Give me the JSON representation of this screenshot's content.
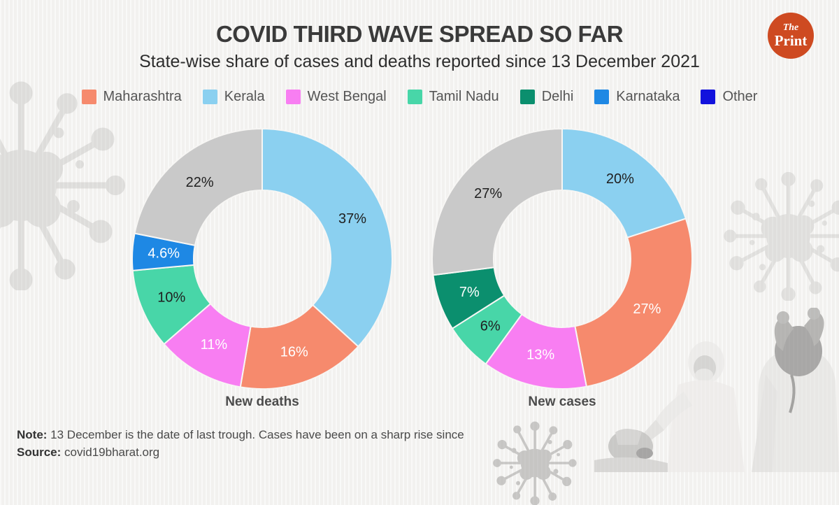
{
  "header": {
    "title": "COVID THIRD WAVE SPREAD SO FAR",
    "subtitle": "State-wise share of cases and deaths reported since 13 December 2021"
  },
  "logo": {
    "line1": "The",
    "line2": "Print",
    "bg_color": "#ce4a21",
    "text_color": "#ffffff"
  },
  "legend": {
    "items": [
      {
        "label": "Maharashtra",
        "color": "#f68a6d"
      },
      {
        "label": "Kerala",
        "color": "#8bd0f0"
      },
      {
        "label": "West Bengal",
        "color": "#f87ef2"
      },
      {
        "label": "Tamil Nadu",
        "color": "#48d6a8"
      },
      {
        "label": "Delhi",
        "color": "#0b8f6e"
      },
      {
        "label": "Karnataka",
        "color": "#1e88e4"
      },
      {
        "label": "Other",
        "color": "#1212dd"
      }
    ]
  },
  "chart_data": [
    {
      "type": "pie",
      "donut": true,
      "title": "New deaths",
      "legend_position": "top",
      "start_angle_deg": 0,
      "direction": "clockwise",
      "segments": [
        {
          "name": "Kerala",
          "value": 37,
          "display": "37%",
          "color": "#8bd0f0",
          "label_color": "#1f1f1f"
        },
        {
          "name": "Maharashtra",
          "value": 16,
          "display": "16%",
          "color": "#f68a6d",
          "label_color": "#ffffff"
        },
        {
          "name": "West Bengal",
          "value": 11,
          "display": "11%",
          "color": "#f87ef2",
          "label_color": "#ffffff"
        },
        {
          "name": "Tamil Nadu",
          "value": 10,
          "display": "10%",
          "color": "#48d6a8",
          "label_color": "#1f1f1f"
        },
        {
          "name": "Karnataka",
          "value": 4.6,
          "display": "4.6%",
          "color": "#1e88e4",
          "label_color": "#ffffff"
        },
        {
          "name": "Other",
          "value": 22,
          "display": "22%",
          "color": "#c9c9c9",
          "label_color": "#1f1f1f"
        }
      ]
    },
    {
      "type": "pie",
      "donut": true,
      "title": "New cases",
      "legend_position": "top",
      "start_angle_deg": 0,
      "direction": "clockwise",
      "segments": [
        {
          "name": "Kerala",
          "value": 20,
          "display": "20%",
          "color": "#8bd0f0",
          "label_color": "#1f1f1f"
        },
        {
          "name": "Maharashtra",
          "value": 27,
          "display": "27%",
          "color": "#f68a6d",
          "label_color": "#ffffff"
        },
        {
          "name": "West Bengal",
          "value": 13,
          "display": "13%",
          "color": "#f87ef2",
          "label_color": "#ffffff"
        },
        {
          "name": "Tamil Nadu",
          "value": 6,
          "display": "6%",
          "color": "#48d6a8",
          "label_color": "#1f1f1f"
        },
        {
          "name": "Delhi",
          "value": 7,
          "display": "7%",
          "color": "#0b8f6e",
          "label_color": "#ffffff"
        },
        {
          "name": "Other",
          "value": 27,
          "display": "27%",
          "color": "#c9c9c9",
          "label_color": "#1f1f1f"
        }
      ]
    }
  ],
  "footer": {
    "note_label": "Note:",
    "note_text": " 13 December is the date of last trough. Cases have been on a sharp rise since",
    "source_label": "Source:",
    "source_text": " covid19bharat.org"
  }
}
